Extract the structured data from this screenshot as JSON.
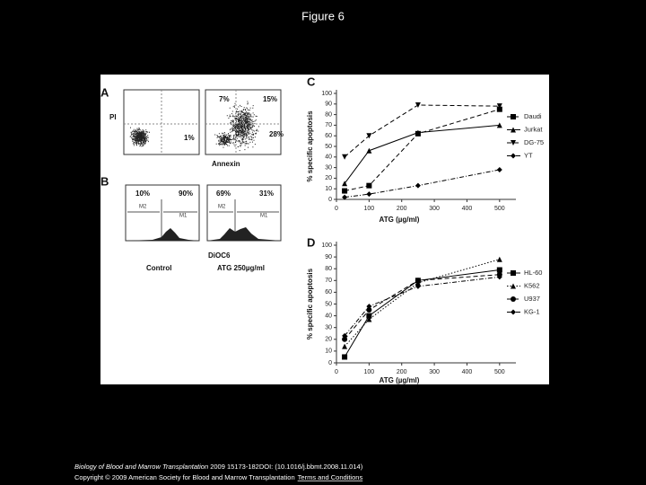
{
  "title": "Figure 6",
  "panels": {
    "A": {
      "label": "A",
      "y_label": "PI",
      "x_label": "Annexin",
      "quadrants": [
        "7%",
        "15%",
        "1%",
        "28%"
      ]
    },
    "B": {
      "label": "B",
      "x_label": "DiOC6",
      "control": {
        "name": "Control",
        "percent": [
          "10%",
          "90%"
        ],
        "gates": [
          "M2",
          "M1"
        ]
      },
      "treated": {
        "name": "ATG 250µg/ml",
        "percent": [
          "69%",
          "31%"
        ],
        "gates": [
          "M2",
          "M1"
        ]
      }
    }
  },
  "chart_data": [
    {
      "type": "line",
      "label": "C",
      "y_label": "% specific apoptosis",
      "x_label": "ATG (µg/ml)",
      "x": [
        25,
        100,
        250,
        500
      ],
      "xlim": [
        0,
        550
      ],
      "xticks": [
        0,
        100,
        200,
        300,
        400,
        500
      ],
      "ylim": [
        0,
        100
      ],
      "yticks": [
        0,
        10,
        20,
        30,
        40,
        50,
        60,
        70,
        80,
        90,
        100
      ],
      "series": [
        {
          "name": "Daudi",
          "color": "#000000",
          "line_style": "dashed",
          "marker": "square",
          "values": [
            8,
            13,
            62,
            85
          ]
        },
        {
          "name": "Jurkat",
          "color": "#000000",
          "line_style": "solid",
          "marker": "triangle",
          "values": [
            15,
            46,
            63,
            70
          ]
        },
        {
          "name": "DG-75",
          "color": "#000000",
          "line_style": "dashed",
          "marker": "triangle-down",
          "values": [
            40,
            60,
            89,
            88
          ]
        },
        {
          "name": "YT",
          "color": "#000000",
          "line_style": "dashdot",
          "marker": "diamond",
          "values": [
            2,
            5,
            13,
            28
          ]
        }
      ]
    },
    {
      "type": "line",
      "label": "D",
      "y_label": "% specific apoptosis",
      "x_label": "ATG (µg/ml)",
      "x": [
        25,
        100,
        250,
        500
      ],
      "xlim": [
        0,
        550
      ],
      "xticks": [
        0,
        100,
        200,
        300,
        400,
        500
      ],
      "ylim": [
        0,
        100
      ],
      "yticks": [
        0,
        10,
        20,
        30,
        40,
        50,
        60,
        70,
        80,
        90,
        100
      ],
      "series": [
        {
          "name": "HL-60",
          "color": "#000000",
          "line_style": "solid",
          "marker": "square",
          "values": [
            5,
            40,
            70,
            79
          ]
        },
        {
          "name": "K562",
          "color": "#000000",
          "line_style": "dotted",
          "marker": "triangle",
          "values": [
            14,
            37,
            68,
            88
          ]
        },
        {
          "name": "U937",
          "color": "#000000",
          "line_style": "dashed",
          "marker": "circle",
          "values": [
            20,
            45,
            70,
            75
          ]
        },
        {
          "name": "KG-1",
          "color": "#000000",
          "line_style": "dashdot",
          "marker": "diamond",
          "values": [
            23,
            48,
            65,
            73
          ]
        }
      ]
    }
  ],
  "footer": {
    "journal": "Biology of Blood and Marrow Transplantation",
    "citation": " 2009 15173-182DOI: (10.1016/j.bbmt.2008.11.014)",
    "copyright": "Copyright © 2009 American Society for Blood and Marrow Transplantation",
    "link": "Terms and Conditions"
  }
}
